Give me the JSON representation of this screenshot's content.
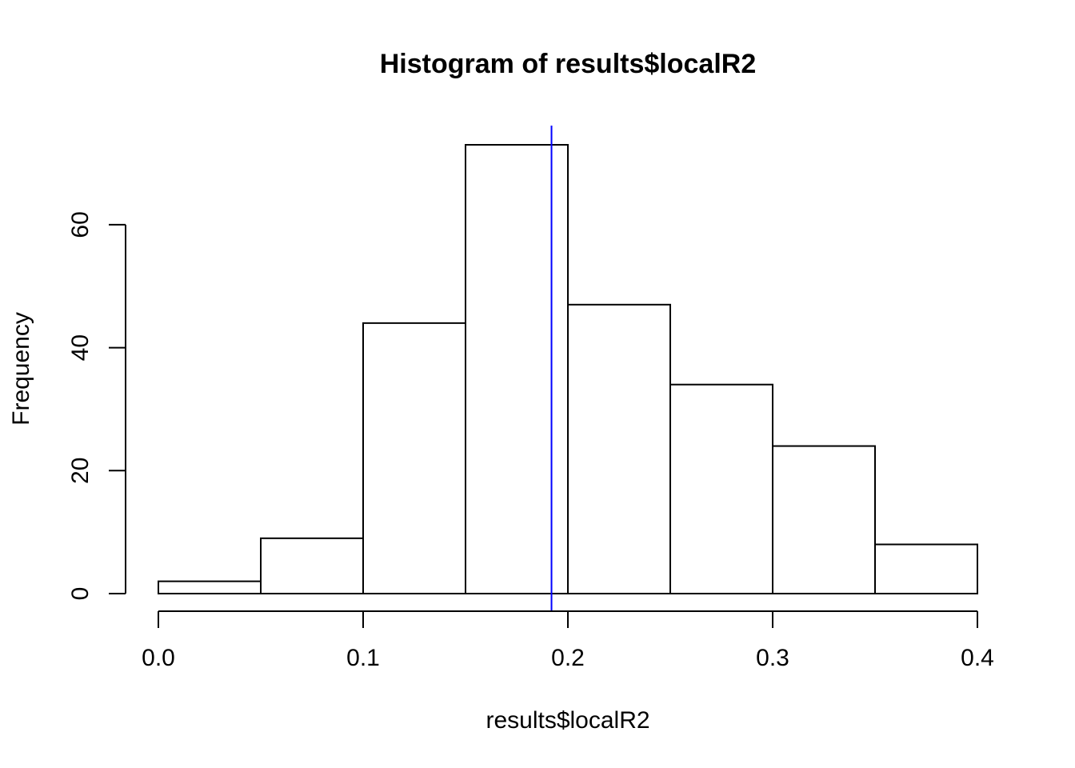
{
  "chart_data": {
    "type": "bar",
    "subtype": "histogram",
    "title": "Histogram of results$localR2",
    "xlabel": "results$localR2",
    "ylabel": "Frequency",
    "bin_edges": [
      0.0,
      0.05,
      0.1,
      0.15,
      0.2,
      0.25,
      0.3,
      0.35,
      0.4
    ],
    "values": [
      2,
      9,
      44,
      73,
      47,
      34,
      24,
      8
    ],
    "xlim": [
      0.0,
      0.4
    ],
    "ylim": [
      0,
      80
    ],
    "x_ticks": [
      0.0,
      0.1,
      0.2,
      0.3,
      0.4
    ],
    "x_tick_labels": [
      "0.0",
      "0.1",
      "0.2",
      "0.3",
      "0.4"
    ],
    "y_ticks": [
      0,
      20,
      40,
      60
    ],
    "y_tick_labels": [
      "0",
      "20",
      "40",
      "60"
    ],
    "vertical_line": {
      "x": 0.192,
      "color": "#0000ff"
    },
    "bar_fill": "#ffffff",
    "bar_stroke": "#000000",
    "grid": false,
    "legend": "none"
  }
}
